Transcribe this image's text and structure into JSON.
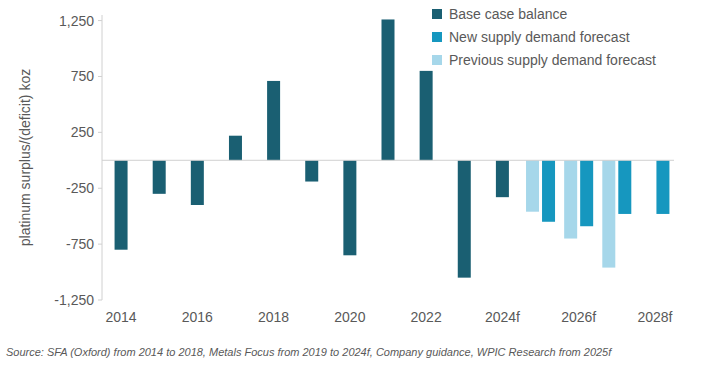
{
  "chart_data": {
    "type": "bar",
    "y_label": "platinum surplus/(deficit) koz",
    "source": "Source: SFA (Oxford) from 2014 to 2018, Metals Focus from 2019 to 2024f, Company guidance, WPIC Research from 2025f",
    "categories": [
      "2014",
      null,
      "2016",
      null,
      "2018",
      null,
      "2020",
      null,
      "2022",
      null,
      "2024f",
      null,
      "2026f",
      null,
      "2028f"
    ],
    "series": [
      {
        "name": "Base case balance",
        "color": "#1a5f72",
        "values": [
          -800,
          -300,
          -400,
          220,
          710,
          -190,
          -850,
          1260,
          800,
          -1050,
          -330,
          null,
          null,
          null,
          null
        ]
      },
      {
        "name": "New supply demand forecast",
        "color": "#1697bf",
        "values": [
          null,
          null,
          null,
          null,
          null,
          null,
          null,
          null,
          null,
          null,
          null,
          -550,
          -590,
          -480,
          -480
        ]
      },
      {
        "name": "Previous supply demand forecast",
        "color": "#a6d7ea",
        "values": [
          null,
          null,
          null,
          null,
          null,
          null,
          null,
          null,
          null,
          null,
          null,
          -460,
          -700,
          -960,
          null
        ]
      }
    ],
    "ylim": [
      -1250,
      1300
    ],
    "yticks": [
      {
        "value": -1250,
        "label": "-1,250"
      },
      -750,
      -250,
      250,
      750,
      {
        "value": 1250,
        "label": "1,250"
      }
    ],
    "grid": false,
    "legend": "top-right"
  }
}
